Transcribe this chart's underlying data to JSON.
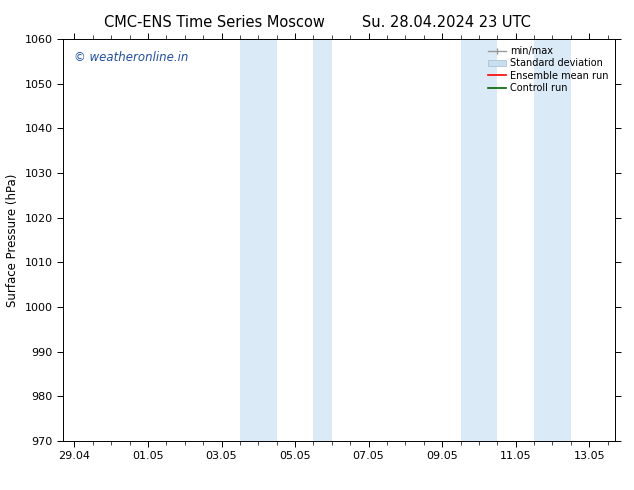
{
  "title_left": "CMC-ENS Time Series Moscow",
  "title_right": "Su. 28.04.2024 23 UTC",
  "ylabel": "Surface Pressure (hPa)",
  "ylim": [
    970,
    1060
  ],
  "yticks": [
    970,
    980,
    990,
    1000,
    1010,
    1020,
    1030,
    1040,
    1050,
    1060
  ],
  "xtick_labels": [
    "29.04",
    "01.05",
    "03.05",
    "05.05",
    "07.05",
    "09.05",
    "11.05",
    "13.05"
  ],
  "xtick_positions": [
    0,
    2,
    4,
    6,
    8,
    10,
    12,
    14
  ],
  "shaded_regions": [
    {
      "x_start": 4.5,
      "x_end": 5.5
    },
    {
      "x_start": 6.5,
      "x_end": 7.0
    },
    {
      "x_start": 10.5,
      "x_end": 11.5
    },
    {
      "x_start": 12.5,
      "x_end": 13.5
    }
  ],
  "shaded_color": "#daeaf6",
  "xlim": [
    -0.3,
    14.7
  ],
  "watermark_text": "© weatheronline.in",
  "watermark_color": "#1f4fa0",
  "bg_color": "#ffffff",
  "title_fontsize": 10.5,
  "label_fontsize": 8.5,
  "tick_fontsize": 8
}
